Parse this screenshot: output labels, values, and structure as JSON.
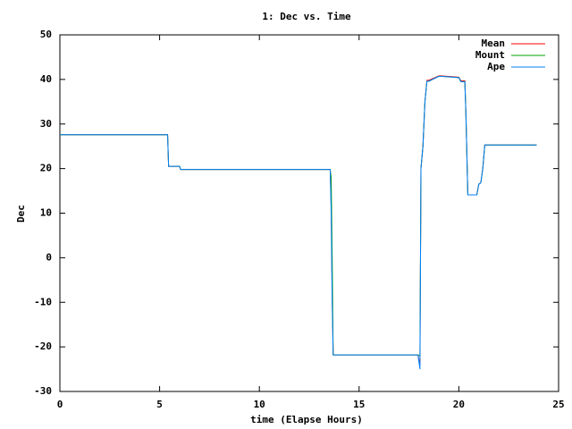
{
  "chart_data": {
    "type": "line",
    "title": "1: Dec vs. Time",
    "x_label": "time (Elapse Hours)",
    "y_label": "Dec",
    "x": [
      0,
      5.4,
      5.45,
      6.0,
      6.05,
      13.55,
      13.6,
      13.65,
      13.7,
      13.75,
      17.95,
      18.05,
      18.1,
      18.2,
      18.3,
      18.4,
      18.5,
      18.9,
      19.0,
      19.1,
      20.0,
      20.1,
      20.3,
      20.35,
      20.45,
      20.9,
      21.0,
      21.1,
      21.2,
      21.3,
      23.9
    ],
    "series": [
      {
        "name": "Mean",
        "color": "#ff0000",
        "values": [
          27.6,
          27.6,
          20.5,
          20.5,
          19.8,
          19.8,
          12,
          -8,
          -21.8,
          -21.8,
          -21.8,
          -24,
          20,
          25,
          35,
          39.8,
          39.8,
          40.6,
          40.8,
          40.8,
          40.5,
          39.7,
          39.7,
          33,
          14.1,
          14.1,
          16.5,
          16.8,
          20,
          25.3,
          25.3
        ]
      },
      {
        "name": "Mount",
        "color": "#00a000",
        "values": [
          27.6,
          27.6,
          20.5,
          20.5,
          19.8,
          19.8,
          18,
          0,
          -21.8,
          -21.8,
          -21.8,
          -22,
          20,
          25,
          35,
          39.6,
          39.6,
          40.5,
          40.7,
          40.7,
          40.4,
          39.5,
          39.5,
          33,
          14.1,
          14.1,
          16.5,
          16.8,
          20,
          25.3,
          25.3
        ]
      },
      {
        "name": "Ape",
        "color": "#0080ff",
        "values": [
          27.6,
          27.6,
          20.5,
          20.5,
          19.8,
          19.8,
          10,
          -10,
          -21.8,
          -21.8,
          -21.8,
          -25,
          20,
          25,
          35,
          39.6,
          39.6,
          40.5,
          40.7,
          40.7,
          40.4,
          39.5,
          39.5,
          33,
          14.1,
          14.1,
          16.5,
          16.8,
          20,
          25.3,
          25.3
        ]
      }
    ],
    "xlim": [
      0,
      25
    ],
    "xticks": [
      0,
      5,
      10,
      15,
      20,
      25
    ],
    "ylim": [
      -30,
      50
    ],
    "yticks": [
      -30,
      -20,
      -10,
      0,
      10,
      20,
      30,
      40,
      50
    ],
    "legend": "top-right",
    "grid": false
  }
}
